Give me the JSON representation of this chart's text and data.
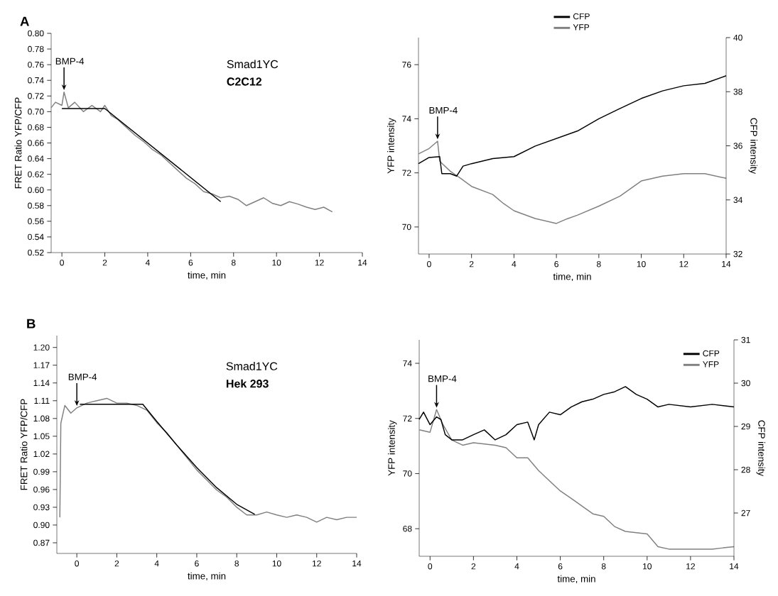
{
  "chart_data": [
    {
      "type": "line",
      "title": "A",
      "xlabel": "time, min",
      "ylabel": "FRET Ratio YFP/CFP",
      "xlim": [
        -0.5,
        14
      ],
      "xticks": [
        0,
        2,
        4,
        6,
        8,
        10,
        12,
        14
      ],
      "ylim": [
        0.52,
        0.8
      ],
      "yticks": [
        0.52,
        0.54,
        0.56,
        0.58,
        {
          "value": 0.6,
          "label": "0.60"
        },
        0.62,
        0.64,
        0.66,
        0.68,
        {
          "value": 0.7,
          "label": "0.70"
        },
        0.72,
        0.74,
        0.76,
        0.78,
        {
          "value": 0.8,
          "label": "0.80"
        }
      ],
      "annotations": [
        {
          "text": "BMP-4",
          "x": 0.1,
          "y": 0.725
        },
        "Smad1YC",
        "C2C12"
      ],
      "series": [
        {
          "color": "#808080",
          "x": [
            -0.5,
            -0.3,
            0,
            0.1,
            0.3,
            0.6,
            1,
            1.4,
            1.8,
            2,
            2.3,
            2.6,
            3,
            3.4,
            3.8,
            4.2,
            4.6,
            5,
            5.4,
            5.8,
            6.2,
            6.6,
            7,
            7.4,
            7.8,
            8.2,
            8.6,
            9,
            9.4,
            9.8,
            10.2,
            10.6,
            11,
            11.4,
            11.8,
            12.2,
            12.6
          ],
          "values": [
            0.705,
            0.712,
            0.708,
            0.725,
            0.705,
            0.712,
            0.7,
            0.708,
            0.7,
            0.708,
            0.695,
            0.69,
            0.68,
            0.67,
            0.662,
            0.652,
            0.645,
            0.635,
            0.625,
            0.615,
            0.608,
            0.598,
            0.595,
            0.59,
            0.592,
            0.588,
            0.58,
            0.585,
            0.59,
            0.583,
            0.58,
            0.585,
            0.582,
            0.578,
            0.575,
            0.578,
            0.572
          ]
        },
        {
          "color": "#000000",
          "x": [
            0,
            2,
            7.4
          ],
          "values": [
            0.704,
            0.704,
            0.585
          ]
        }
      ]
    },
    {
      "type": "line",
      "xlabel": "time, min",
      "ylabel": "YFP intensity",
      "y2label": "CFP intensity",
      "legend": "top",
      "xlim": [
        -0.5,
        14
      ],
      "xticks": [
        0,
        2,
        4,
        6,
        8,
        10,
        12,
        14
      ],
      "ylim": [
        69,
        77
      ],
      "yticks": [
        70,
        72,
        74,
        76
      ],
      "y2lim": [
        32,
        40
      ],
      "y2ticks": [
        32,
        34,
        36,
        38,
        40
      ],
      "annotations": [
        {
          "text": "BMP-4",
          "x": 0.4,
          "y": 73.17
        }
      ],
      "series": [
        {
          "name": "CFP",
          "color": "#000000",
          "axis": "y2",
          "x": [
            -0.5,
            0,
            0.5,
            0.6,
            1,
            1.3,
            1.6,
            2,
            3,
            4,
            5,
            6,
            7,
            8,
            9,
            10,
            11,
            12,
            13,
            14
          ],
          "values": [
            35.34,
            35.57,
            35.6,
            34.97,
            34.97,
            34.88,
            35.25,
            35.34,
            35.53,
            35.6,
            35.99,
            36.27,
            36.55,
            37.0,
            37.38,
            37.75,
            38.03,
            38.22,
            38.31,
            38.59
          ]
        },
        {
          "name": "YFP",
          "color": "#808080",
          "x": [
            -0.5,
            0,
            0.4,
            0.5,
            1,
            1.5,
            2,
            3,
            3.5,
            4,
            5,
            6,
            6.5,
            7,
            8,
            9,
            10,
            11,
            12,
            13,
            14
          ],
          "values": [
            72.7,
            72.9,
            73.17,
            72.43,
            72.06,
            71.79,
            71.5,
            71.2,
            70.87,
            70.6,
            70.31,
            70.13,
            70.3,
            70.44,
            70.77,
            71.14,
            71.7,
            71.88,
            71.97,
            71.97,
            71.8
          ]
        }
      ]
    },
    {
      "type": "line",
      "title": "B",
      "xlabel": "time, min",
      "ylabel": "FRET Ratio YFP/CFP",
      "xlim": [
        -1,
        14
      ],
      "xticks": [
        0,
        2,
        4,
        6,
        8,
        10,
        12,
        14
      ],
      "ylim": [
        0.852,
        1.22
      ],
      "yticks": [
        0.87,
        {
          "value": 0.9,
          "label": "0.90"
        },
        0.93,
        0.96,
        0.99,
        1.02,
        1.05,
        1.08,
        1.11,
        1.14,
        1.17,
        {
          "value": 1.2,
          "label": "1.20"
        }
      ],
      "annotations": [
        {
          "text": "BMP-4",
          "x": 0,
          "y": 1.098
        },
        "Smad1YC",
        "Hek 293"
      ],
      "series": [
        {
          "color": "#808080",
          "x": [
            -0.85,
            -0.8,
            -0.6,
            -0.3,
            0,
            0.5,
            1,
            1.5,
            2,
            2.5,
            3,
            3.5,
            4,
            4.5,
            5,
            5.5,
            6,
            6.5,
            7,
            7.5,
            8,
            8.5,
            9,
            9.5,
            10,
            10.5,
            11,
            11.5,
            12,
            12.5,
            13,
            13.5,
            14
          ],
          "values": [
            0.913,
            1.072,
            1.102,
            1.089,
            1.098,
            1.106,
            1.11,
            1.114,
            1.106,
            1.106,
            1.102,
            1.094,
            1.073,
            1.056,
            1.035,
            1.014,
            0.993,
            0.976,
            0.959,
            0.947,
            0.93,
            0.917,
            0.917,
            0.922,
            0.917,
            0.913,
            0.917,
            0.913,
            0.905,
            0.913,
            0.909,
            0.913,
            0.913
          ]
        },
        {
          "color": "#000000",
          "x": [
            0.15,
            3.3,
            4,
            5,
            6,
            7,
            8,
            8.9
          ],
          "values": [
            1.104,
            1.104,
            1.075,
            1.035,
            0.997,
            0.963,
            0.935,
            0.918
          ]
        }
      ]
    },
    {
      "type": "line",
      "xlabel": "time, min",
      "ylabel": "YFP intensity",
      "y2label": "CFP intensity",
      "legend": "top right",
      "xlim": [
        -0.5,
        14
      ],
      "xticks": [
        0,
        2,
        4,
        6,
        8,
        10,
        12,
        14
      ],
      "ylim": [
        67,
        74.85
      ],
      "yticks": [
        68,
        70,
        72,
        74
      ],
      "y2lim": [
        26,
        31
      ],
      "y2ticks": [
        27,
        28,
        29,
        30,
        31
      ],
      "annotations": [
        {
          "text": "BMP-4",
          "x": 0.3,
          "y": 72.32
        }
      ],
      "series": [
        {
          "name": "CFP",
          "color": "#000000",
          "axis": "y2",
          "x": [
            -0.5,
            -0.3,
            0,
            0.3,
            0.5,
            0.7,
            1,
            1.5,
            2,
            2.5,
            3,
            3.5,
            4,
            4.5,
            4.8,
            5,
            5.5,
            6,
            6.5,
            7,
            7.5,
            8,
            8.5,
            9,
            9.5,
            10,
            10.5,
            11,
            12,
            13,
            14
          ],
          "values": [
            29.16,
            29.33,
            29.04,
            29.22,
            29.16,
            28.81,
            28.69,
            28.69,
            28.81,
            28.92,
            28.69,
            28.81,
            29.04,
            29.1,
            28.69,
            29.04,
            29.33,
            29.27,
            29.45,
            29.57,
            29.63,
            29.74,
            29.8,
            29.92,
            29.74,
            29.63,
            29.45,
            29.51,
            29.45,
            29.51,
            29.45
          ]
        },
        {
          "name": "YFP",
          "color": "#808080",
          "x": [
            -0.5,
            0,
            0.3,
            0.6,
            1,
            1.5,
            2,
            3,
            3.5,
            4,
            4.5,
            5,
            5.5,
            6,
            6.5,
            7,
            7.5,
            8,
            8.5,
            9,
            10,
            10.5,
            11,
            12,
            13,
            14
          ],
          "values": [
            71.59,
            71.5,
            72.32,
            71.77,
            71.22,
            71.03,
            71.12,
            71.03,
            70.94,
            70.57,
            70.57,
            70.11,
            69.74,
            69.37,
            69.1,
            68.82,
            68.54,
            68.45,
            68.08,
            67.9,
            67.81,
            67.35,
            67.26,
            67.26,
            67.26,
            67.35
          ]
        }
      ]
    }
  ]
}
